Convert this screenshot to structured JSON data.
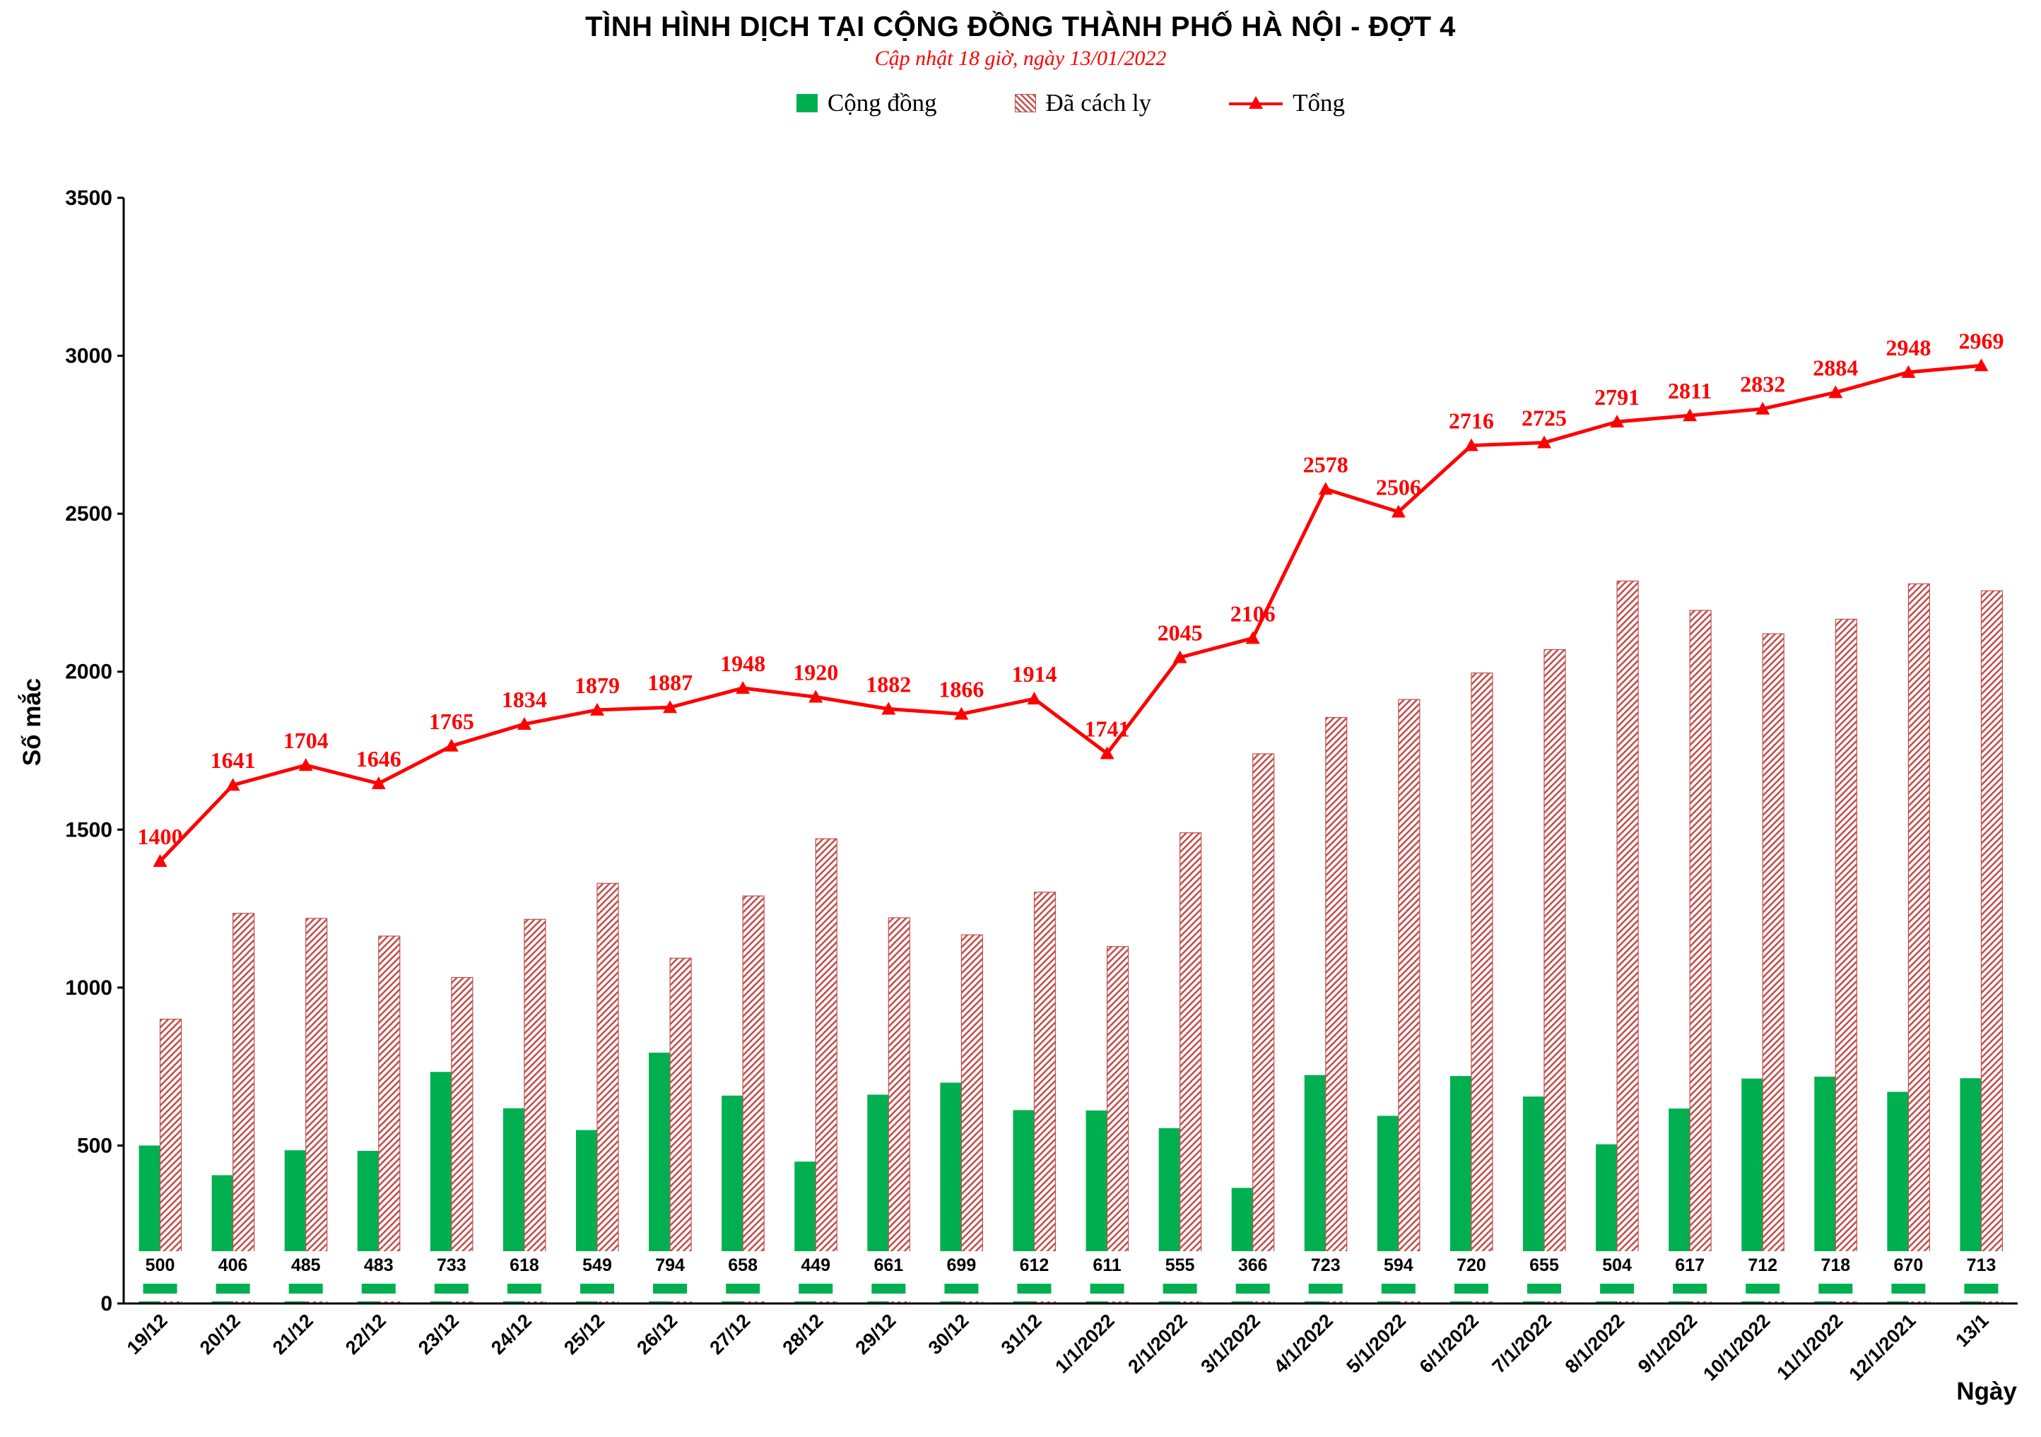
{
  "header": {
    "title": "TÌNH HÌNH DỊCH TẠI CỘNG ĐỒNG THÀNH PHỐ HÀ NỘI - ĐỢT 4",
    "subtitle": "Cập nhật 18 giờ, ngày 13/01/2022"
  },
  "legend": {
    "community": "Cộng đồng",
    "isolated": "Đã cách ly",
    "total": "Tổng"
  },
  "axes": {
    "y_title": "Số mắc",
    "x_title": "Ngày",
    "y_ticks": [
      0,
      500,
      1000,
      1500,
      2000,
      2500,
      3000,
      3500
    ],
    "y_max": 3500
  },
  "colors": {
    "community_green": "#00b050",
    "isolated_hatch_red": "#c0504d",
    "total_line_red": "#ff0000",
    "axis_black": "#000000",
    "label_box_white": "#ffffff"
  },
  "chart_data": {
    "type": "bar",
    "title": "TÌNH HÌNH DỊCH TẠI CỘNG ĐỒNG THÀNH PHỐ HÀ NỘI - ĐỢT 4",
    "subtitle": "Cập nhật 18 giờ, ngày 13/01/2022",
    "xlabel": "Ngày",
    "ylabel": "Số mắc",
    "ylim": [
      0,
      3500
    ],
    "grid": false,
    "legend_position": "top",
    "categories": [
      "19/12",
      "20/12",
      "21/12",
      "22/12",
      "23/12",
      "24/12",
      "25/12",
      "26/12",
      "27/12",
      "28/12",
      "29/12",
      "30/12",
      "31/12",
      "1/1/2022",
      "2/1/2022",
      "3/1/2022",
      "4/1/2022",
      "5/1/2022",
      "6/1/2022",
      "7/1/2022",
      "8/1/2022",
      "9/1/2022",
      "10/1/2022",
      "11/1/2022",
      "12/1/2021",
      "13/1"
    ],
    "series": [
      {
        "name": "Cộng đồng",
        "type": "bar",
        "values": [
          500,
          406,
          485,
          483,
          733,
          618,
          549,
          794,
          658,
          449,
          661,
          699,
          612,
          611,
          555,
          366,
          723,
          594,
          720,
          655,
          504,
          617,
          712,
          718,
          670,
          713
        ]
      },
      {
        "name": "Đã cách ly",
        "type": "bar",
        "values": [
          900,
          1235,
          1219,
          1163,
          1032,
          1216,
          1330,
          1093,
          1290,
          1471,
          1221,
          1167,
          1302,
          1130,
          1490,
          1740,
          1855,
          1912,
          1996,
          2070,
          2287,
          2194,
          2120,
          2166,
          2278,
          2256
        ]
      },
      {
        "name": "Tổng",
        "type": "line",
        "values": [
          1400,
          1641,
          1704,
          1646,
          1765,
          1834,
          1879,
          1887,
          1948,
          1920,
          1882,
          1866,
          1914,
          1741,
          2045,
          2106,
          2578,
          2506,
          2716,
          2725,
          2791,
          2811,
          2832,
          2884,
          2948,
          2969
        ]
      }
    ]
  }
}
